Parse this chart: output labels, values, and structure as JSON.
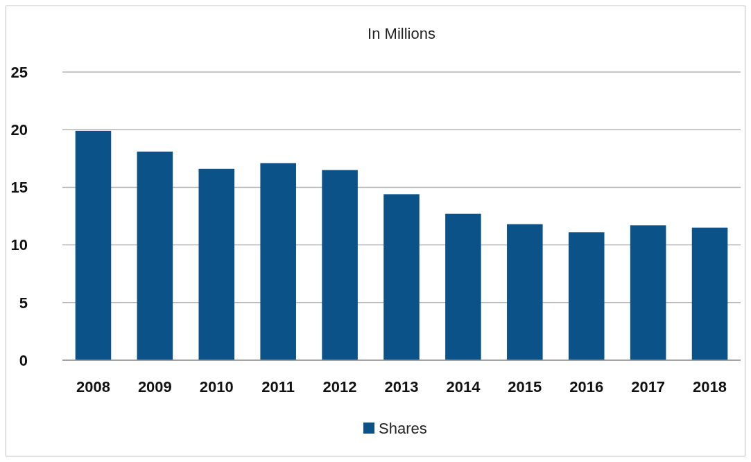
{
  "chart_data": {
    "type": "bar",
    "title": "In Millions",
    "categories": [
      "2008",
      "2009",
      "2010",
      "2011",
      "2012",
      "2013",
      "2014",
      "2015",
      "2016",
      "2017",
      "2018"
    ],
    "series": [
      {
        "name": "Shares",
        "color": "#0b5289",
        "values": [
          19.9,
          18.1,
          16.6,
          17.1,
          16.5,
          14.4,
          12.7,
          11.8,
          11.1,
          11.7,
          11.5
        ]
      }
    ],
    "ylim": [
      0,
      25
    ],
    "yticks": [
      0,
      5,
      10,
      15,
      20,
      25
    ],
    "grid": "y",
    "legend": "bottom"
  }
}
